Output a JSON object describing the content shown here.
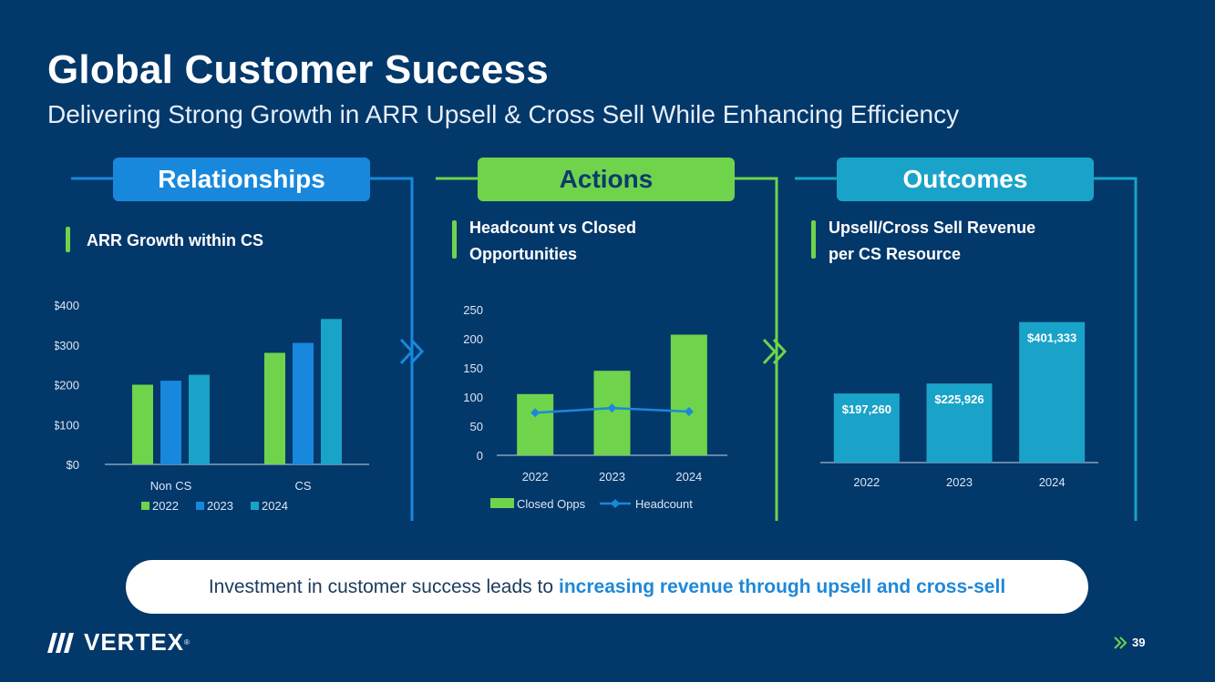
{
  "header": {
    "title": "Global Customer Success",
    "subtitle": "Delivering Strong Growth in ARR Upsell & Cross Sell While Enhancing Efficiency"
  },
  "sections": {
    "relationships": {
      "header": "Relationships",
      "label": "ARR Growth within CS"
    },
    "actions": {
      "header": "Actions",
      "label_line1": "Headcount vs Closed",
      "label_line2": "Opportunities"
    },
    "outcomes": {
      "header": "Outcomes",
      "label_line1": "Upsell/Cross Sell Revenue",
      "label_line2": "per CS Resource"
    }
  },
  "colors": {
    "background": "#03386b",
    "green": "#6fd44b",
    "blue": "#1888dc",
    "teal": "#1aa3c8",
    "axis_text": "#dbe6f2"
  },
  "callout": {
    "text": "Investment in customer success leads to",
    "highlight": "increasing revenue through upsell and cross-sell"
  },
  "footer": {
    "logo_text": "VERTEX",
    "logo_mark": "®",
    "page_number": "39"
  },
  "chart_data": [
    {
      "type": "bar",
      "title": "ARR Growth within CS",
      "categories": [
        "Non CS",
        "CS"
      ],
      "series": [
        {
          "name": "2022",
          "values": [
            200,
            280
          ],
          "color": "#6fd44b"
        },
        {
          "name": "2023",
          "values": [
            210,
            305
          ],
          "color": "#1888dc"
        },
        {
          "name": "2024",
          "values": [
            225,
            365
          ],
          "color": "#1aa3c8"
        }
      ],
      "yticks": [
        "$0",
        "$100",
        "$200",
        "$300",
        "$400"
      ],
      "ylim": [
        0,
        400
      ],
      "legend": "bottom"
    },
    {
      "type": "bar",
      "title": "Headcount vs Closed Opportunities",
      "categories": [
        "2022",
        "2023",
        "2024"
      ],
      "series": [
        {
          "name": "Closed Opps",
          "type": "bar",
          "values": [
            105,
            145,
            207
          ],
          "color": "#6fd44b"
        },
        {
          "name": "Headcount",
          "type": "line",
          "values": [
            73,
            81,
            75
          ],
          "color": "#1a88dc"
        }
      ],
      "yticks": [
        "0",
        "50",
        "100",
        "150",
        "200",
        "250"
      ],
      "ylim": [
        0,
        250
      ],
      "legend": "bottom"
    },
    {
      "type": "bar",
      "title": "Upsell/Cross Sell Revenue per CS Resource",
      "categories": [
        "2022",
        "2023",
        "2024"
      ],
      "values": [
        197260,
        225926,
        401333
      ],
      "data_labels": [
        "$197,260",
        "$225,926",
        "$401,333"
      ],
      "color": "#1aa3c8",
      "ylim": [
        0,
        450000
      ]
    }
  ]
}
